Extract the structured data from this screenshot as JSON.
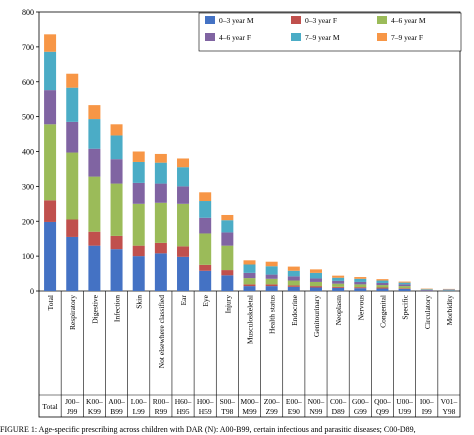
{
  "chart_data": {
    "type": "bar",
    "stacked": true,
    "ylim": [
      0,
      800
    ],
    "yticks": [
      0,
      100,
      200,
      300,
      400,
      500,
      600,
      700,
      800
    ],
    "grid": false,
    "legend_position": "top-right",
    "categories": [
      "Total",
      "Respiratory",
      "Digestive",
      "Infection",
      "Skin",
      "Not elsewhere classified",
      "Ear",
      "Eye",
      "Injury",
      "Musculoskeletal",
      "Health status",
      "Endocrine",
      "Genitourinary",
      "Neoplasm",
      "Nervous",
      "Congenital",
      "Specific",
      "Circulatory",
      "Morbidity"
    ],
    "code_ranges": [
      [
        "Total",
        ""
      ],
      [
        "J00–",
        "J99"
      ],
      [
        "K00–",
        "K99"
      ],
      [
        "A00–",
        "B99"
      ],
      [
        "L00–",
        "L99"
      ],
      [
        "R00–",
        "R99"
      ],
      [
        "H60–",
        "H95"
      ],
      [
        "H00–",
        "H59"
      ],
      [
        "S00–",
        "T98"
      ],
      [
        "M00–",
        "M99"
      ],
      [
        "Z00–",
        "Z99"
      ],
      [
        "E00–",
        "E90"
      ],
      [
        "N00–",
        "N99"
      ],
      [
        "C00–",
        "D89"
      ],
      [
        "G00–",
        "G99"
      ],
      [
        "Q00–",
        "Q99"
      ],
      [
        "U00–",
        "U99"
      ],
      [
        "I00–",
        "I99"
      ],
      [
        "V01–",
        "Y98"
      ]
    ],
    "series": [
      {
        "name": "0–3 year M",
        "color": "#4472c4",
        "values": [
          198,
          155,
          130,
          120,
          100,
          108,
          98,
          58,
          45,
          14,
          14,
          12,
          10,
          9,
          8,
          7,
          6,
          2,
          2
        ]
      },
      {
        "name": "0–3 year F",
        "color": "#c0504d",
        "values": [
          62,
          50,
          40,
          38,
          30,
          30,
          30,
          17,
          15,
          5,
          5,
          4,
          4,
          3,
          3,
          3,
          2,
          1,
          0
        ]
      },
      {
        "name": "4–6 year M",
        "color": "#9bbb59",
        "values": [
          218,
          192,
          158,
          150,
          120,
          115,
          122,
          90,
          70,
          18,
          16,
          14,
          12,
          9,
          8,
          7,
          6,
          1,
          1
        ]
      },
      {
        "name": "4–6 year F",
        "color": "#8064a2",
        "values": [
          98,
          88,
          80,
          70,
          60,
          55,
          50,
          45,
          38,
          15,
          12,
          12,
          10,
          8,
          7,
          6,
          5,
          1,
          1
        ]
      },
      {
        "name": "7–9 year M",
        "color": "#4bacc6",
        "values": [
          110,
          98,
          85,
          68,
          60,
          60,
          55,
          48,
          35,
          24,
          24,
          16,
          16,
          9,
          9,
          7,
          5,
          1,
          1
        ]
      },
      {
        "name": "7–9 year F",
        "color": "#f79646",
        "values": [
          50,
          40,
          40,
          32,
          30,
          25,
          25,
          25,
          15,
          12,
          13,
          12,
          10,
          6,
          5,
          4,
          3,
          1,
          1
        ]
      }
    ]
  },
  "caption": "FIGURE 1: Age-specific prescribing across children with DAR (N): A00-B99, certain infectious and parasitic diseases; C00-D89,"
}
